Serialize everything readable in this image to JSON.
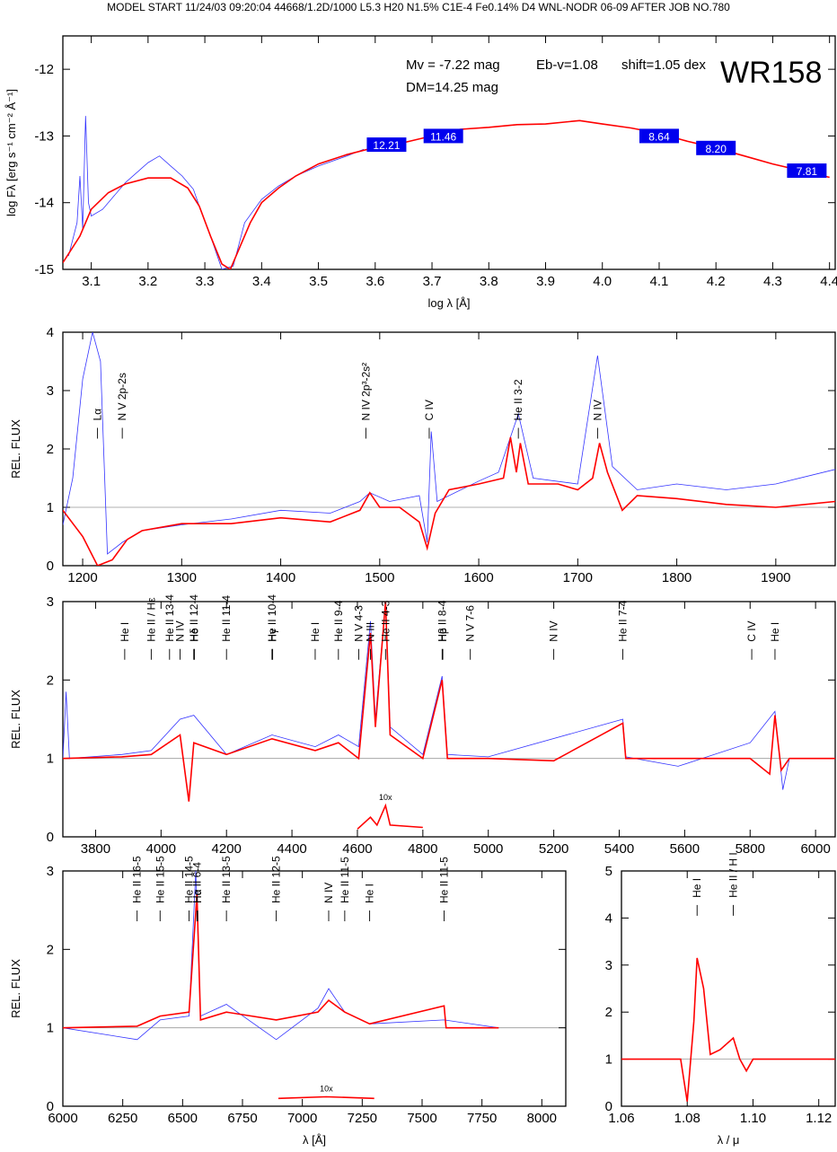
{
  "header": "MODEL START   11/24/03  09:20:04   44668/1.2D/1000 L5.3 H20 N1.5% C1E-4 Fe0.14% D4 WNL-NODR 06-09    AFTER JOB NO.780",
  "colors": {
    "observation": "#3333ff",
    "model": "#ff0000",
    "photometry_box": "#0000ee",
    "continuum": "#999999"
  },
  "chart_data": [
    {
      "id": "sed",
      "type": "line",
      "xlabel": "log λ [Å]",
      "ylabel": "log Fλ [erg s⁻¹ cm⁻² Å⁻¹]",
      "xlim": [
        3.05,
        4.41
      ],
      "ylim": [
        -15,
        -11.5
      ],
      "xticks": [
        3.1,
        3.2,
        3.3,
        3.4,
        3.5,
        3.6,
        3.7,
        3.8,
        3.9,
        4.0,
        4.1,
        4.2,
        4.3,
        4.4
      ],
      "yticks": [
        -15,
        -14,
        -13,
        -12
      ],
      "annotations": {
        "mv": "Mv = -7.22 mag",
        "ebv": "Eb-v=1.08",
        "shift": "shift=1.05 dex",
        "star": "WR158",
        "dm": "DM=14.25 mag"
      },
      "photometry": [
        {
          "x": 3.62,
          "y": -13.13,
          "label": "12.21"
        },
        {
          "x": 3.72,
          "y": -13.0,
          "label": "11.46"
        },
        {
          "x": 4.1,
          "y": -13.0,
          "label": "8.64"
        },
        {
          "x": 4.2,
          "y": -13.18,
          "label": "8.20"
        },
        {
          "x": 4.36,
          "y": -13.52,
          "label": "7.81"
        }
      ],
      "model": [
        [
          3.05,
          -14.9
        ],
        [
          3.08,
          -14.5
        ],
        [
          3.1,
          -14.1
        ],
        [
          3.13,
          -13.85
        ],
        [
          3.16,
          -13.72
        ],
        [
          3.2,
          -13.63
        ],
        [
          3.24,
          -13.63
        ],
        [
          3.27,
          -13.78
        ],
        [
          3.29,
          -14.05
        ],
        [
          3.31,
          -14.5
        ],
        [
          3.33,
          -14.92
        ],
        [
          3.345,
          -15.0
        ],
        [
          3.36,
          -14.7
        ],
        [
          3.38,
          -14.3
        ],
        [
          3.4,
          -14.0
        ],
        [
          3.43,
          -13.78
        ],
        [
          3.46,
          -13.6
        ],
        [
          3.5,
          -13.42
        ],
        [
          3.55,
          -13.28
        ],
        [
          3.6,
          -13.17
        ],
        [
          3.65,
          -13.1
        ],
        [
          3.7,
          -13.0
        ],
        [
          3.75,
          -12.9
        ],
        [
          3.8,
          -12.87
        ],
        [
          3.85,
          -12.83
        ],
        [
          3.9,
          -12.82
        ],
        [
          3.96,
          -12.77
        ],
        [
          4.0,
          -12.82
        ],
        [
          4.05,
          -12.88
        ],
        [
          4.1,
          -12.96
        ],
        [
          4.15,
          -13.08
        ],
        [
          4.2,
          -13.18
        ],
        [
          4.25,
          -13.3
        ],
        [
          4.3,
          -13.42
        ],
        [
          4.35,
          -13.52
        ],
        [
          4.4,
          -13.62
        ]
      ],
      "observed": [
        [
          3.06,
          -14.8
        ],
        [
          3.075,
          -14.3
        ],
        [
          3.08,
          -13.6
        ],
        [
          3.085,
          -14.4
        ],
        [
          3.09,
          -12.7
        ],
        [
          3.095,
          -14.0
        ],
        [
          3.1,
          -14.2
        ],
        [
          3.12,
          -14.1
        ],
        [
          3.14,
          -13.9
        ],
        [
          3.16,
          -13.7
        ],
        [
          3.18,
          -13.55
        ],
        [
          3.2,
          -13.4
        ],
        [
          3.22,
          -13.3
        ],
        [
          3.24,
          -13.45
        ],
        [
          3.26,
          -13.6
        ],
        [
          3.28,
          -13.8
        ],
        [
          3.29,
          -14.05
        ],
        [
          3.31,
          -14.5
        ],
        [
          3.33,
          -15.0
        ],
        [
          3.35,
          -14.95
        ],
        [
          3.37,
          -14.3
        ],
        [
          3.4,
          -13.95
        ],
        [
          3.43,
          -13.75
        ],
        [
          3.46,
          -13.6
        ],
        [
          3.5,
          -13.45
        ],
        [
          3.55,
          -13.3
        ],
        [
          3.58,
          -13.2
        ]
      ]
    },
    {
      "id": "uv",
      "type": "line",
      "xlabel": "",
      "ylabel": "REL. FLUX",
      "xlim": [
        1180,
        1960
      ],
      "ylim": [
        0,
        4
      ],
      "xticks": [
        1200,
        1300,
        1400,
        1500,
        1600,
        1700,
        1800,
        1900
      ],
      "yticks": [
        0,
        1,
        2,
        3,
        4
      ],
      "lines": [
        {
          "x": 1215,
          "label": "Lα"
        },
        {
          "x": 1240,
          "label": "N V 2p-2s"
        },
        {
          "x": 1486,
          "label": "N IV 2p³-2s²"
        },
        {
          "x": 1550,
          "label": "C IV"
        },
        {
          "x": 1640,
          "label": "He II 3-2"
        },
        {
          "x": 1720,
          "label": "N IV"
        }
      ],
      "model": [
        [
          1180,
          0.95
        ],
        [
          1200,
          0.5
        ],
        [
          1215,
          0.0
        ],
        [
          1230,
          0.1
        ],
        [
          1245,
          0.45
        ],
        [
          1260,
          0.6
        ],
        [
          1300,
          0.72
        ],
        [
          1350,
          0.72
        ],
        [
          1400,
          0.82
        ],
        [
          1450,
          0.75
        ],
        [
          1480,
          0.95
        ],
        [
          1490,
          1.25
        ],
        [
          1500,
          1.0
        ],
        [
          1520,
          1.0
        ],
        [
          1540,
          0.75
        ],
        [
          1548,
          0.3
        ],
        [
          1556,
          0.9
        ],
        [
          1570,
          1.3
        ],
        [
          1600,
          1.4
        ],
        [
          1625,
          1.5
        ],
        [
          1632,
          2.2
        ],
        [
          1638,
          1.6
        ],
        [
          1642,
          2.1
        ],
        [
          1650,
          1.4
        ],
        [
          1680,
          1.4
        ],
        [
          1700,
          1.3
        ],
        [
          1715,
          1.5
        ],
        [
          1722,
          2.1
        ],
        [
          1730,
          1.6
        ],
        [
          1745,
          0.95
        ],
        [
          1760,
          1.2
        ],
        [
          1800,
          1.15
        ],
        [
          1850,
          1.05
        ],
        [
          1900,
          1.0
        ],
        [
          1960,
          1.1
        ]
      ],
      "observed": [
        [
          1180,
          0.7
        ],
        [
          1190,
          1.5
        ],
        [
          1200,
          3.2
        ],
        [
          1210,
          4.0
        ],
        [
          1218,
          3.5
        ],
        [
          1225,
          0.2
        ],
        [
          1240,
          0.4
        ],
        [
          1260,
          0.6
        ],
        [
          1300,
          0.7
        ],
        [
          1350,
          0.8
        ],
        [
          1400,
          0.95
        ],
        [
          1450,
          0.9
        ],
        [
          1480,
          1.1
        ],
        [
          1490,
          1.25
        ],
        [
          1510,
          1.1
        ],
        [
          1540,
          1.2
        ],
        [
          1548,
          0.4
        ],
        [
          1552,
          2.3
        ],
        [
          1558,
          1.1
        ],
        [
          1600,
          1.45
        ],
        [
          1620,
          1.6
        ],
        [
          1640,
          2.6
        ],
        [
          1655,
          1.5
        ],
        [
          1700,
          1.4
        ],
        [
          1720,
          3.6
        ],
        [
          1735,
          1.7
        ],
        [
          1760,
          1.3
        ],
        [
          1800,
          1.4
        ],
        [
          1850,
          1.3
        ],
        [
          1900,
          1.4
        ],
        [
          1960,
          1.65
        ]
      ]
    },
    {
      "id": "optical",
      "type": "line",
      "xlabel": "",
      "ylabel": "REL. FLUX",
      "xlim": [
        3700,
        6060
      ],
      "ylim": [
        0,
        3
      ],
      "xticks": [
        3800,
        4000,
        4200,
        4400,
        4600,
        4800,
        5000,
        5200,
        5400,
        5600,
        5800,
        6000
      ],
      "yticks": [
        0,
        1,
        2,
        3
      ],
      "inset_label": "10x",
      "lines": [
        {
          "x": 3889,
          "label": "He I"
        },
        {
          "x": 3970,
          "label": "He II / Hε"
        },
        {
          "x": 4026,
          "label": "He II 13-4"
        },
        {
          "x": 4058,
          "label": "N IV"
        },
        {
          "x": 4100,
          "label": "He II 12-4"
        },
        {
          "x": 4102,
          "label": "Hδ"
        },
        {
          "x": 4200,
          "label": "He II 11-4"
        },
        {
          "x": 4339,
          "label": "He II 10-4"
        },
        {
          "x": 4341,
          "label": "Hγ"
        },
        {
          "x": 4471,
          "label": "He I"
        },
        {
          "x": 4542,
          "label": "He II 9-4"
        },
        {
          "x": 4604,
          "label": "N V 4-3"
        },
        {
          "x": 4640,
          "label": "N III"
        },
        {
          "x": 4686,
          "label": "He II 4-3"
        },
        {
          "x": 4859,
          "label": "He II 8-4"
        },
        {
          "x": 4861,
          "label": "Hβ"
        },
        {
          "x": 4945,
          "label": "N V 7-6"
        },
        {
          "x": 5200,
          "label": "N IV"
        },
        {
          "x": 5411,
          "label": "He II 7-4"
        },
        {
          "x": 5805,
          "label": "C IV"
        },
        {
          "x": 5876,
          "label": "He I"
        }
      ],
      "model": [
        [
          3700,
          1.0
        ],
        [
          3880,
          1.02
        ],
        [
          3970,
          1.05
        ],
        [
          4058,
          1.3
        ],
        [
          4085,
          0.45
        ],
        [
          4100,
          1.2
        ],
        [
          4200,
          1.05
        ],
        [
          4339,
          1.25
        ],
        [
          4471,
          1.1
        ],
        [
          4542,
          1.2
        ],
        [
          4604,
          1.0
        ],
        [
          4640,
          2.6
        ],
        [
          4655,
          1.4
        ],
        [
          4686,
          3.0
        ],
        [
          4700,
          1.3
        ],
        [
          4800,
          1.0
        ],
        [
          4859,
          2.0
        ],
        [
          4875,
          1.0
        ],
        [
          5000,
          1.0
        ],
        [
          5200,
          0.97
        ],
        [
          5411,
          1.45
        ],
        [
          5420,
          1.0
        ],
        [
          5800,
          1.0
        ],
        [
          5860,
          0.8
        ],
        [
          5876,
          1.55
        ],
        [
          5895,
          0.85
        ],
        [
          5920,
          1.0
        ],
        [
          6060,
          1.0
        ]
      ],
      "observed": [
        [
          3700,
          1.0
        ],
        [
          3710,
          1.85
        ],
        [
          3720,
          1.0
        ],
        [
          3880,
          1.05
        ],
        [
          3970,
          1.1
        ],
        [
          4058,
          1.5
        ],
        [
          4100,
          1.55
        ],
        [
          4200,
          1.05
        ],
        [
          4339,
          1.3
        ],
        [
          4471,
          1.15
        ],
        [
          4542,
          1.3
        ],
        [
          4604,
          1.15
        ],
        [
          4640,
          2.75
        ],
        [
          4655,
          1.5
        ],
        [
          4686,
          3.0
        ],
        [
          4700,
          1.4
        ],
        [
          4800,
          1.05
        ],
        [
          4859,
          2.05
        ],
        [
          4875,
          1.05
        ],
        [
          5000,
          1.02
        ],
        [
          5411,
          1.5
        ],
        [
          5420,
          1.02
        ],
        [
          5580,
          0.9
        ],
        [
          5800,
          1.2
        ],
        [
          5876,
          1.6
        ],
        [
          5900,
          0.6
        ],
        [
          5920,
          1.0
        ],
        [
          6060,
          1.0
        ]
      ],
      "inset": [
        [
          4600,
          0.1
        ],
        [
          4640,
          0.25
        ],
        [
          4660,
          0.15
        ],
        [
          4686,
          0.4
        ],
        [
          4700,
          0.15
        ],
        [
          4800,
          0.12
        ]
      ]
    },
    {
      "id": "red",
      "type": "line",
      "xlabel": "λ [Å]",
      "ylabel": "REL. FLUX",
      "xlim": [
        6000,
        8100
      ],
      "ylim": [
        0,
        3
      ],
      "xticks": [
        6000,
        6250,
        6500,
        6750,
        7000,
        7250,
        7500,
        7750,
        8000
      ],
      "yticks": [
        0,
        1,
        2,
        3
      ],
      "inset_label": "10x",
      "lines": [
        {
          "x": 6310,
          "label": "He II 16-5"
        },
        {
          "x": 6406,
          "label": "He II 15-5"
        },
        {
          "x": 6527,
          "label": "He II 14-5"
        },
        {
          "x": 6560,
          "label": "He II 6-4"
        },
        {
          "x": 6563,
          "label": "Hα"
        },
        {
          "x": 6683,
          "label": "He II 13-5"
        },
        {
          "x": 6891,
          "label": "He II 12-5"
        },
        {
          "x": 7110,
          "label": "N IV"
        },
        {
          "x": 7177,
          "label": "He II 11-5"
        },
        {
          "x": 7281,
          "label": "He I"
        },
        {
          "x": 7592,
          "label": "He II 11-5"
        }
      ],
      "model": [
        [
          6000,
          1.0
        ],
        [
          6310,
          1.02
        ],
        [
          6406,
          1.15
        ],
        [
          6527,
          1.2
        ],
        [
          6560,
          2.7
        ],
        [
          6575,
          1.1
        ],
        [
          6683,
          1.2
        ],
        [
          6891,
          1.1
        ],
        [
          7065,
          1.2
        ],
        [
          7110,
          1.35
        ],
        [
          7177,
          1.2
        ],
        [
          7281,
          1.05
        ],
        [
          7592,
          1.28
        ],
        [
          7600,
          1.0
        ],
        [
          7820,
          1.0
        ]
      ],
      "observed": [
        [
          6000,
          1.0
        ],
        [
          6310,
          0.85
        ],
        [
          6406,
          1.1
        ],
        [
          6527,
          1.15
        ],
        [
          6555,
          3.0
        ],
        [
          6575,
          1.15
        ],
        [
          6683,
          1.3
        ],
        [
          6891,
          0.85
        ],
        [
          7065,
          1.25
        ],
        [
          7110,
          1.5
        ],
        [
          7177,
          1.2
        ],
        [
          7281,
          1.05
        ],
        [
          7592,
          1.1
        ],
        [
          7820,
          1.0
        ]
      ],
      "inset": [
        [
          6900,
          0.1
        ],
        [
          7100,
          0.12
        ],
        [
          7300,
          0.1
        ]
      ]
    },
    {
      "id": "ir",
      "type": "line",
      "xlabel": "λ / μ",
      "ylabel": "",
      "xlim": [
        1.06,
        1.125
      ],
      "ylim": [
        0,
        5
      ],
      "xticks": [
        1.06,
        1.08,
        1.1,
        1.12
      ],
      "yticks": [
        0,
        1,
        2,
        3,
        4,
        5
      ],
      "lines": [
        {
          "x": 1.083,
          "label": "He I"
        },
        {
          "x": 1.094,
          "label": "He II / H I"
        }
      ],
      "model": [
        [
          1.06,
          1.0
        ],
        [
          1.078,
          1.0
        ],
        [
          1.08,
          0.1
        ],
        [
          1.082,
          1.8
        ],
        [
          1.083,
          3.15
        ],
        [
          1.085,
          2.5
        ],
        [
          1.087,
          1.1
        ],
        [
          1.09,
          1.2
        ],
        [
          1.094,
          1.45
        ],
        [
          1.096,
          1.0
        ],
        [
          1.098,
          0.75
        ],
        [
          1.1,
          1.0
        ],
        [
          1.125,
          1.0
        ]
      ],
      "observed": []
    }
  ]
}
